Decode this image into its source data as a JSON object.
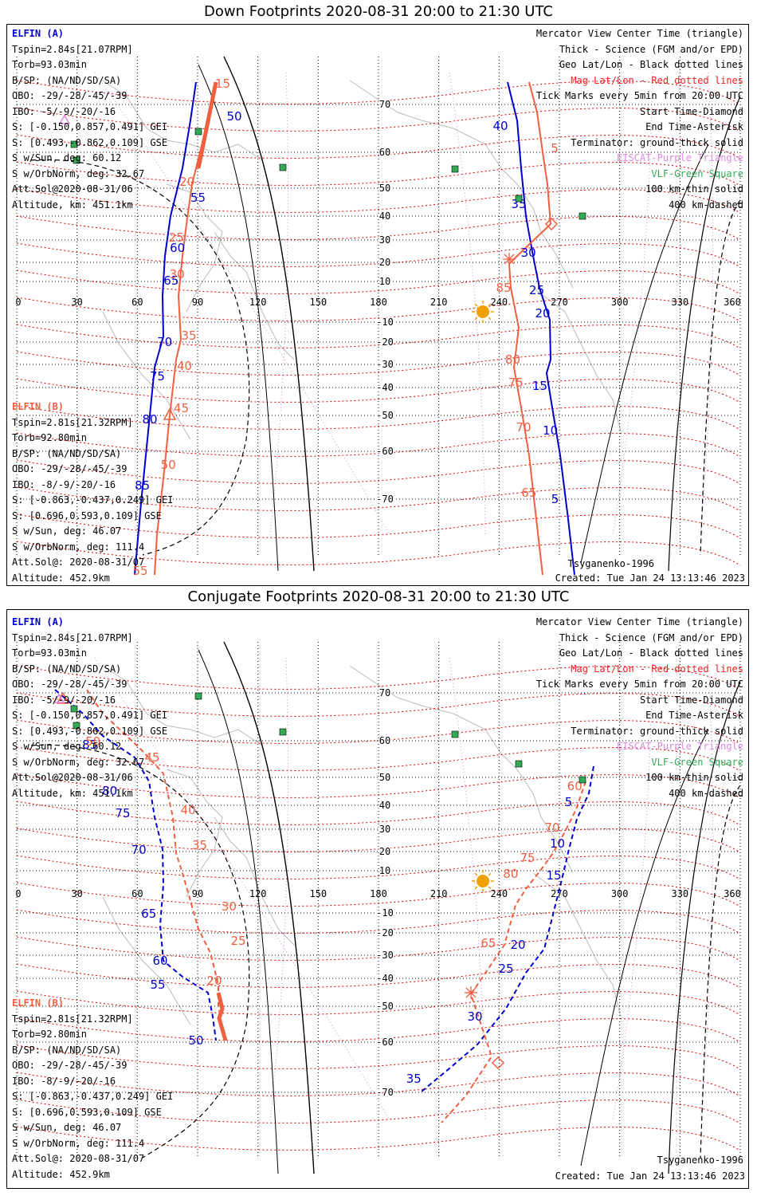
{
  "colors": {
    "elfin_a": "#0000cc",
    "elfin_b": "#f06040",
    "mag_grid": "#dd0000",
    "geo_grid": "#000000",
    "eiscat": "#dd88dd",
    "vlf": "#33aa55",
    "sun": "#f0a000",
    "coast": "#bbbbbb"
  },
  "axes": {
    "lon_ticks": [
      "0",
      "30",
      "60",
      "90",
      "120",
      "150",
      "180",
      "210",
      "240",
      "270",
      "300",
      "330",
      "360"
    ],
    "lat_ticks": [
      "70",
      "60",
      "50",
      "40",
      "30",
      "20",
      "10",
      "-10",
      "-20",
      "-30",
      "-40",
      "-50",
      "-60",
      "-70"
    ]
  },
  "elfin_a_info": [
    "ELFIN (A)",
    "Tspin=2.84s[21.07RPM]",
    "Torb=93.03min",
    "B/SP: (NA/ND/SD/SA)",
    "OBO: -29/-28/-45/-39",
    "IBO: -5/-9/-20/-16",
    "S: [-0.150,0.857,0.491] GEI",
    "S: [0.493,-0.862,0.109] GSE",
    "S w/Sun, deg: 60.12",
    "S w/OrbNorm, deg: 32.67",
    "Att.Sol@2020-08-31/06",
    "Altitude, km: 451.1km"
  ],
  "elfin_b_info": [
    "ELFIN (B)",
    "Tspin=2.81s[21.32RPM]",
    "Torb=92.80min",
    "B/SP: (NA/ND/SD/SA)",
    "OBO: -29/-28/-45/-39",
    "IBO: -8/-9/-20/-16",
    "S: [-0.863,-0.437,0.249] GEI",
    "S: [0.696,0.593,0.109] GSE",
    "S w/Sun, deg: 46.07",
    "S w/OrbNorm, deg: 111.4",
    "Att.Sol@: 2020-08-31/07",
    "Altitude: 452.9km"
  ],
  "legend": [
    {
      "text": "Mercator View Center Time (triangle)",
      "color": "#000000"
    },
    {
      "text": "Thick - Science (FGM and/or EPD)",
      "color": "#000000"
    },
    {
      "text": "Geo Lat/Lon - Black dotted lines",
      "color": "#000000"
    },
    {
      "text": "Mag Lat/Lon - Red dotted lines",
      "color": "#ee2222"
    },
    {
      "text": "Tick Marks every 5min from 20:00 UTC",
      "color": "#000000"
    },
    {
      "text": "Start Time-Diamond",
      "color": "#000000"
    },
    {
      "text": "End Time-Asterisk",
      "color": "#000000"
    },
    {
      "text": "Terminator: ground-thick solid",
      "color": "#000000"
    },
    {
      "text": "EISCAT-Purple Triangle",
      "color": "#dd88dd"
    },
    {
      "text": "VLF-Green Square",
      "color": "#33aa55"
    },
    {
      "text": "100 km-thin solid",
      "color": "#000000"
    },
    {
      "text": "400 km-dashed",
      "color": "#000000"
    }
  ],
  "model": "Tsyganenko-1996",
  "created": "Created: Tue Jan 24 13:13:46 2023",
  "panels": [
    {
      "title": "Down Footprints 2020-08-31 20:00 to 21:30 UTC",
      "a_left": [
        [
          "50",
          0,
          55,
          120
        ],
        [
          "55",
          0,
          30,
          222
        ],
        [
          "60",
          0,
          15,
          285
        ],
        [
          "65",
          0,
          10,
          326
        ],
        [
          "70",
          0,
          5,
          403
        ],
        [
          "75",
          0,
          5,
          446
        ],
        [
          "80",
          0,
          1,
          500
        ],
        [
          "85",
          0,
          0,
          583
        ]
      ],
      "b_left": [
        [
          "15",
          1,
          10,
          79
        ],
        [
          "20",
          1,
          -6,
          202
        ],
        [
          "25",
          1,
          -10,
          272
        ],
        [
          "30",
          1,
          -4,
          318
        ],
        [
          "35",
          1,
          10,
          395
        ],
        [
          "40",
          1,
          12,
          433
        ],
        [
          "45",
          1,
          14,
          486
        ],
        [
          "50",
          1,
          5,
          557
        ],
        [
          "55",
          1,
          -18,
          690
        ]
      ],
      "a_right": [
        [
          "40",
          0,
          -22,
          132
        ],
        [
          "35",
          0,
          -8,
          230
        ],
        [
          "30",
          0,
          -6,
          291
        ],
        [
          "25",
          0,
          -6,
          338
        ],
        [
          "20",
          0,
          -8,
          367
        ],
        [
          "15",
          0,
          -12,
          458
        ],
        [
          "10",
          0,
          -8,
          514
        ],
        [
          "5",
          0,
          -14,
          600
        ]
      ],
      "b_right": [
        [
          "5",
          1,
          15,
          160
        ],
        [
          "85",
          1,
          -10,
          335
        ],
        [
          "80",
          1,
          -2,
          425
        ],
        [
          "75",
          1,
          -2,
          454
        ],
        [
          "70",
          1,
          -2,
          510
        ],
        [
          "65",
          1,
          -6,
          592
        ]
      ],
      "a_right_pts": [
        [
          628,
          72
        ],
        [
          640,
          120
        ],
        [
          645,
          180
        ],
        [
          651,
          240
        ],
        [
          660,
          290
        ],
        [
          668,
          330
        ],
        [
          681,
          370
        ],
        [
          682,
          420
        ],
        [
          677,
          437
        ],
        [
          684,
          480
        ],
        [
          694,
          540
        ],
        [
          704,
          620
        ],
        [
          712,
          690
        ]
      ],
      "b_right_pts": [
        [
          655,
          72
        ],
        [
          665,
          110
        ],
        [
          672,
          160
        ],
        [
          678,
          200
        ],
        [
          682,
          250
        ],
        [
          640,
          290
        ],
        [
          630,
          300
        ],
        [
          632,
          330
        ],
        [
          642,
          380
        ],
        [
          636,
          430
        ],
        [
          645,
          480
        ],
        [
          655,
          540
        ],
        [
          664,
          620
        ],
        [
          672,
          690
        ]
      ],
      "a_left_pts": [
        [
          237,
          72
        ],
        [
          230,
          120
        ],
        [
          220,
          180
        ],
        [
          205,
          240
        ],
        [
          198,
          290
        ],
        [
          195,
          340
        ],
        [
          196,
          391
        ],
        [
          185,
          430
        ],
        [
          178,
          500
        ],
        [
          168,
          600
        ],
        [
          160,
          690
        ]
      ],
      "b_left_pts": [
        [
          262,
          72
        ],
        [
          254,
          110
        ],
        [
          242,
          160
        ],
        [
          232,
          200
        ],
        [
          225,
          250
        ],
        [
          220,
          290
        ],
        [
          215,
          340
        ],
        [
          218,
          395
        ],
        [
          212,
          420
        ],
        [
          204,
          490
        ],
        [
          197,
          560
        ],
        [
          188,
          640
        ],
        [
          185,
          690
        ]
      ],
      "b_thick": [
        [
          262,
          72
        ],
        [
          240,
          180
        ]
      ],
      "start_diamond": [
        683,
        250
      ],
      "end_asterisk": [
        630,
        294
      ],
      "center_triangle_a": [
        204,
        490
      ],
      "sun": [
        597,
        360
      ],
      "vlf": [
        [
          240,
          134
        ],
        [
          84,
          150
        ],
        [
          87,
          170
        ],
        [
          346,
          179
        ],
        [
          562,
          181
        ],
        [
          642,
          218
        ],
        [
          722,
          240
        ]
      ],
      "eiscat": [
        [
          72,
          120
        ]
      ]
    },
    {
      "title": "Conjugate Footprints 2020-08-31 20:00 to 21:30 UTC",
      "a_left": [
        [
          "85",
          0,
          -40,
          174
        ],
        [
          "80",
          0,
          -52,
          232
        ],
        [
          "75",
          0,
          -40,
          260
        ],
        [
          "70",
          0,
          -30,
          306
        ],
        [
          "65",
          0,
          -15,
          386
        ],
        [
          "60",
          0,
          -10,
          445
        ],
        [
          "55",
          0,
          -55,
          475
        ],
        [
          "50",
          0,
          -25,
          545
        ]
      ],
      "b_left": [
        [
          "50",
          1,
          -55,
          170
        ],
        [
          "45",
          1,
          0,
          190
        ],
        [
          "40",
          1,
          20,
          256
        ],
        [
          "35",
          1,
          30,
          300
        ],
        [
          "30",
          1,
          45,
          377
        ],
        [
          "25",
          1,
          40,
          420
        ],
        [
          "20",
          1,
          -5,
          470
        ]
      ],
      "a_right": [
        [
          "5",
          0,
          -18,
          246
        ],
        [
          "10",
          0,
          -15,
          298
        ],
        [
          "15",
          0,
          -10,
          338
        ],
        [
          "20",
          0,
          -33,
          425
        ],
        [
          "25",
          0,
          -25,
          455
        ],
        [
          "30",
          0,
          -27,
          515
        ],
        [
          "35",
          0,
          -23,
          593
        ]
      ],
      "b_right": [
        [
          "60",
          1,
          -10,
          226
        ],
        [
          "70",
          1,
          -16,
          278
        ],
        [
          "75",
          1,
          -24,
          316
        ],
        [
          "80",
          1,
          -30,
          336
        ],
        [
          "65",
          1,
          -18,
          423
        ]
      ],
      "a_right_pts": [
        [
          736,
          196
        ],
        [
          730,
          230
        ],
        [
          715,
          262
        ],
        [
          705,
          300
        ],
        [
          698,
          330
        ],
        [
          690,
          362
        ],
        [
          683,
          390
        ],
        [
          674,
          425
        ],
        [
          651,
          455
        ],
        [
          626,
          500
        ],
        [
          590,
          545
        ],
        [
          555,
          575
        ],
        [
          520,
          604
        ]
      ],
      "b_right_pts": [
        [
          726,
          215
        ],
        [
          714,
          250
        ],
        [
          700,
          278
        ],
        [
          685,
          305
        ],
        [
          672,
          323
        ],
        [
          651,
          350
        ],
        [
          638,
          370
        ],
        [
          624,
          420
        ],
        [
          582,
          482
        ],
        [
          608,
          560
        ],
        [
          575,
          610
        ],
        [
          545,
          643
        ]
      ],
      "a_left_pts": [
        [
          60,
          100
        ],
        [
          95,
          130
        ],
        [
          120,
          158
        ],
        [
          160,
          185
        ],
        [
          178,
          215
        ],
        [
          185,
          260
        ],
        [
          195,
          300
        ],
        [
          196,
          345
        ],
        [
          192,
          395
        ],
        [
          196,
          440
        ],
        [
          220,
          460
        ],
        [
          252,
          480
        ],
        [
          258,
          510
        ],
        [
          262,
          540
        ]
      ],
      "b_left_pts": [
        [
          100,
          100
        ],
        [
          120,
          130
        ],
        [
          168,
          175
        ],
        [
          196,
          205
        ],
        [
          208,
          260
        ],
        [
          212,
          305
        ],
        [
          220,
          330
        ],
        [
          230,
          365
        ],
        [
          240,
          400
        ],
        [
          255,
          430
        ],
        [
          265,
          470
        ],
        [
          265,
          495
        ],
        [
          268,
          515
        ],
        [
          274,
          540
        ]
      ],
      "b_thick": [
        [
          265,
          480
        ],
        [
          270,
          500
        ],
        [
          266,
          512
        ],
        [
          274,
          540
        ]
      ],
      "start_diamond": [
        616,
        568
      ],
      "end_asterisk": [
        582,
        480
      ],
      "center_triangle_a": [
        70,
        112
      ],
      "sun": [
        597,
        340
      ],
      "vlf": [
        [
          240,
          108
        ],
        [
          84,
          124
        ],
        [
          87,
          145
        ],
        [
          346,
          153
        ],
        [
          562,
          156
        ],
        [
          642,
          193
        ],
        [
          722,
          213
        ]
      ],
      "eiscat": [
        [
          65,
          112
        ]
      ]
    }
  ]
}
